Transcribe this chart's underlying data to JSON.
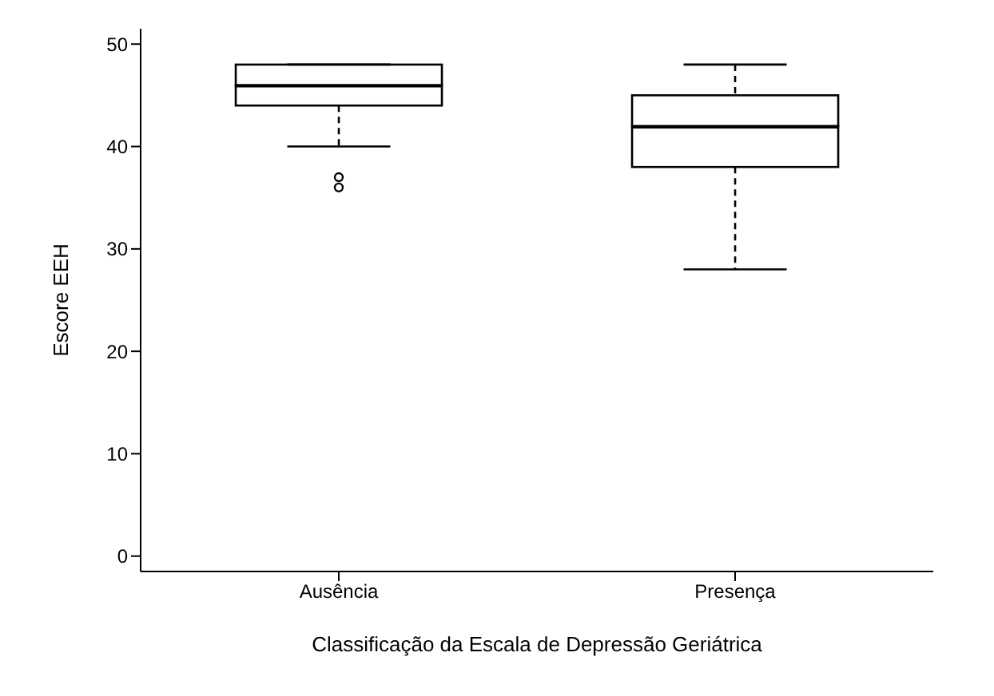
{
  "chart_data": {
    "type": "box",
    "xlabel": "Classificação da Escala de Depressão Geriátrica",
    "ylabel": "Escore EEH",
    "categories": [
      "Ausência",
      "Presença"
    ],
    "boxes": [
      {
        "low": 40,
        "q1": 44,
        "median": 46,
        "q3": 48,
        "high": 48,
        "outliers": [
          36,
          37
        ]
      },
      {
        "low": 28,
        "q1": 38,
        "median": 42,
        "q3": 45,
        "high": 48
      }
    ],
    "ylim": [
      -1.5,
      51.5
    ],
    "yticks": [
      0,
      10,
      20,
      30,
      40,
      50
    ]
  }
}
